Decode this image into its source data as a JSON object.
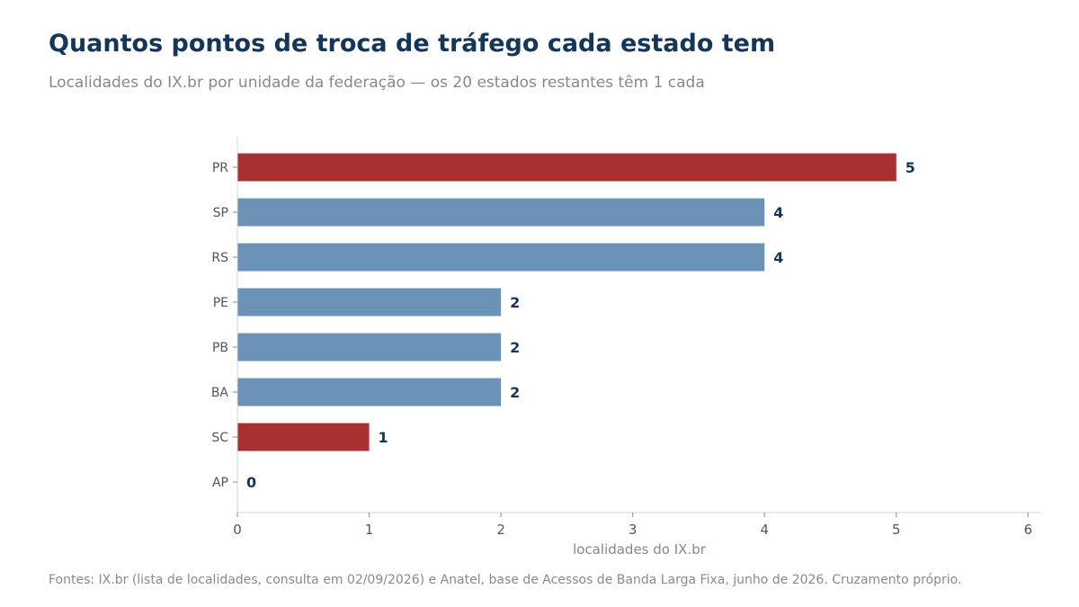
{
  "header": {
    "title": "Quantos pontos de troca de tráfego cada estado tem",
    "subtitle": "Localidades do IX.br por unidade da federação — os 20 estados restantes têm 1 cada"
  },
  "footer": {
    "source": "Fontes: IX.br (lista de localidades, consulta em 02/09/2026) e Anatel, base de Acessos de Banda Larga Fixa, junho de 2026. Cruzamento próprio."
  },
  "colors": {
    "highlight": "#a83030",
    "default": "#6a93b7",
    "label": "#14365a"
  },
  "chart_data": {
    "type": "bar",
    "orientation": "horizontal",
    "categories": [
      "PR",
      "SP",
      "RS",
      "PE",
      "PB",
      "BA",
      "SC",
      "AP"
    ],
    "values": [
      5,
      4,
      4,
      2,
      2,
      2,
      1,
      0
    ],
    "highlighted": [
      "PR",
      "SC"
    ],
    "xlabel": "localidades do IX.br",
    "ylabel": "",
    "xlim": [
      0,
      6.1
    ],
    "xticks": [
      0,
      1,
      2,
      3,
      4,
      5,
      6
    ],
    "grid": false,
    "legend": "none"
  }
}
